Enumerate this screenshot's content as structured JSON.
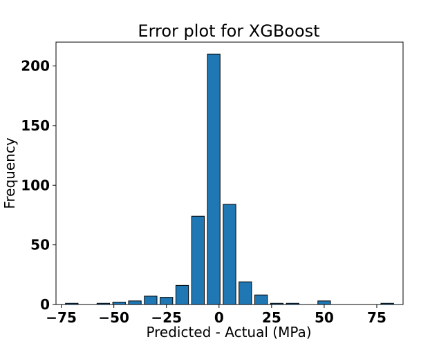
{
  "chart_data": {
    "type": "bar",
    "title": "Error plot for XGBoost",
    "xlabel": "Predicted - Actual (MPa)",
    "ylabel": "Frequency",
    "xlim": [
      -77.5,
      87.5
    ],
    "ylim": [
      0,
      220
    ],
    "grid": false,
    "bar_color": "#1f77b4",
    "edge_color": "#000000",
    "bin_width": 7.5,
    "x": [
      -70,
      -62.5,
      -55,
      -47.5,
      -40,
      -32.5,
      -25,
      -17.5,
      -10,
      -2.5,
      5,
      12.5,
      20,
      27.5,
      35,
      42.5,
      50,
      57.5,
      65,
      72.5,
      80
    ],
    "values": [
      1,
      0,
      1,
      2,
      3,
      7,
      6,
      16,
      74,
      210,
      84,
      19,
      8,
      1,
      1,
      0,
      3,
      0,
      0,
      0,
      1
    ],
    "xticks": [
      -75,
      -50,
      -25,
      0,
      25,
      50,
      75
    ],
    "xtick_labels": [
      "−75",
      "−50",
      "−25",
      "0",
      "25",
      "50",
      "75"
    ],
    "yticks": [
      0,
      50,
      100,
      150,
      200
    ],
    "ytick_labels": [
      "0",
      "50",
      "100",
      "150",
      "200"
    ]
  }
}
